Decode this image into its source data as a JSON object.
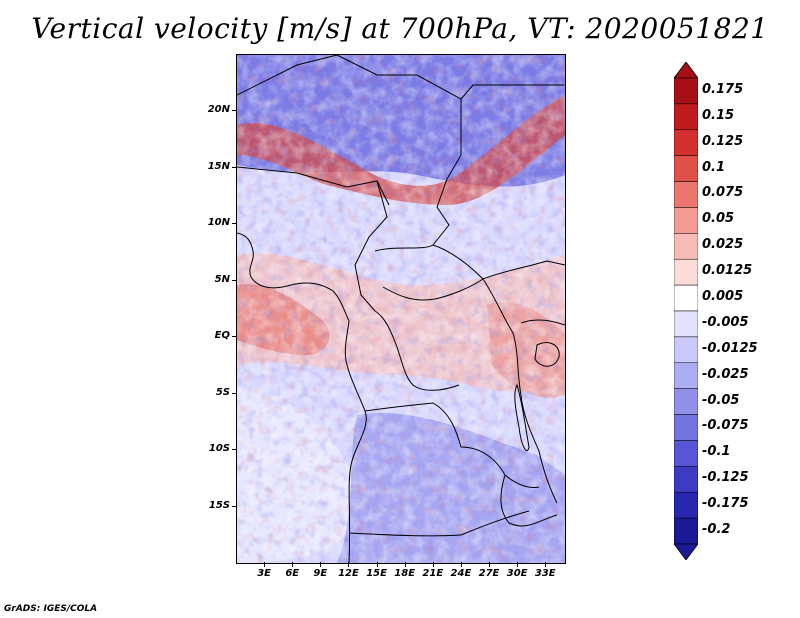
{
  "title": "Vertical velocity [m/s] at 700hPa, VT: 2020051821",
  "map": {
    "variable": "Vertical velocity",
    "units": "m/s",
    "level": "700hPa",
    "valid_time": "2020051821",
    "lat_range": [
      -20,
      25
    ],
    "lon_range": [
      0,
      35
    ],
    "lat_ticks": [
      "20N",
      "15N",
      "10N",
      "5N",
      "EQ",
      "5S",
      "10S",
      "15S"
    ],
    "lon_ticks": [
      "3E",
      "6E",
      "9E",
      "12E",
      "15E",
      "18E",
      "21E",
      "24E",
      "27E",
      "30E",
      "33E"
    ]
  },
  "colorbar": {
    "levels": [
      "0.175",
      "0.15",
      "0.125",
      "0.1",
      "0.075",
      "0.05",
      "0.025",
      "0.0125",
      "0.005",
      "-0.005",
      "-0.0125",
      "-0.025",
      "-0.05",
      "-0.075",
      "-0.1",
      "-0.125",
      "-0.175",
      "-0.2"
    ],
    "colors": [
      "#a50f15",
      "#c0191e",
      "#d3302e",
      "#e0514a",
      "#eb766e",
      "#f39a92",
      "#f8bcb6",
      "#fcdcd8",
      "#ffffff",
      "#e2e2ff",
      "#c9c9fb",
      "#adadf4",
      "#9191ec",
      "#7373e2",
      "#5656d6",
      "#3b3bc4",
      "#2626ae",
      "#1a1a96"
    ]
  },
  "footer": "GrADS: IGES/COLA"
}
